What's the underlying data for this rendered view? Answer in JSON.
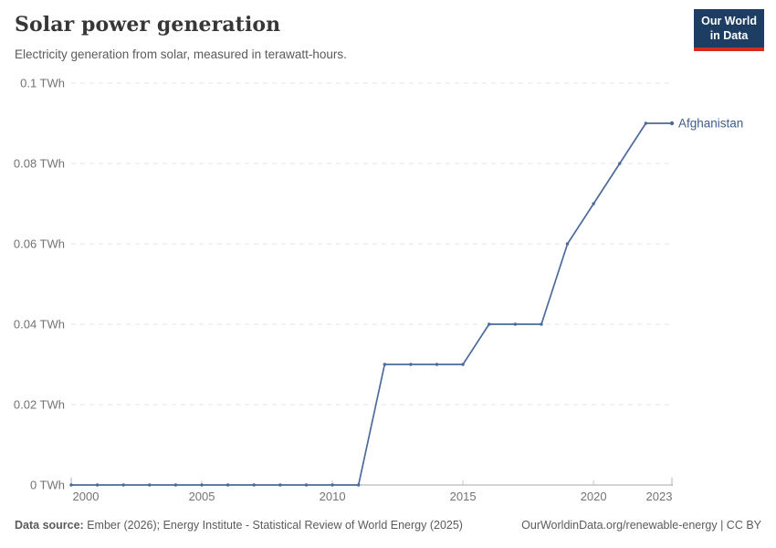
{
  "header": {
    "title": "Solar power generation",
    "subtitle": "Electricity generation from solar, measured in terawatt-hours.",
    "logo": {
      "line1": "Our World",
      "line2": "in Data",
      "bg_color": "#1d3d63",
      "bar_color": "#d42b21"
    }
  },
  "chart_data": {
    "type": "line",
    "title": "Solar power generation",
    "unit": "TWh",
    "x": [
      2000,
      2001,
      2002,
      2003,
      2004,
      2005,
      2006,
      2007,
      2008,
      2009,
      2010,
      2011,
      2012,
      2013,
      2014,
      2015,
      2016,
      2017,
      2018,
      2019,
      2020,
      2021,
      2022,
      2023
    ],
    "series": [
      {
        "name": "Afghanistan",
        "color": "#4c6a9c",
        "label_color": "#3d5c8f",
        "values": [
          0,
          0,
          0,
          0,
          0,
          0,
          0,
          0,
          0,
          0,
          0,
          0,
          0.03,
          0.03,
          0.03,
          0.03,
          0.04,
          0.04,
          0.04,
          0.06,
          0.07,
          0.08,
          0.09,
          0.09
        ]
      }
    ],
    "xlim": [
      2000,
      2023
    ],
    "ylim": [
      0,
      0.1
    ],
    "x_ticks": [
      2000,
      2005,
      2010,
      2015,
      2020,
      2023
    ],
    "y_ticks": [
      0,
      0.02,
      0.04,
      0.06,
      0.08,
      0.1
    ],
    "y_tick_labels": [
      "0 TWh",
      "0.02 TWh",
      "0.04 TWh",
      "0.06 TWh",
      "0.08 TWh",
      "0.1 TWh"
    ],
    "grid": "horizontal-dashed",
    "grid_color": "#e5e5e5",
    "axis_color": "#a8a8a8",
    "tick_label_color": "#737373",
    "legend_position": "end-of-line-label"
  },
  "footer": {
    "source_label": "Data source:",
    "source_text": " Ember (2026); Energy Institute - Statistical Review of World Energy (2025)",
    "link_text": "OurWorldinData.org/renewable-energy | CC BY"
  }
}
